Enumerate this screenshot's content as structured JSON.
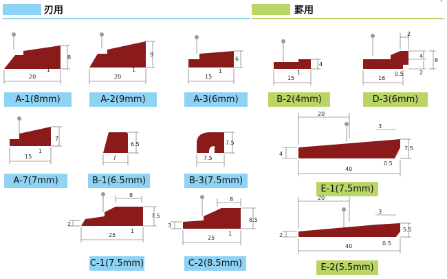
{
  "headers": {
    "blade": {
      "label": "刃用",
      "color": "#8fd3f4"
    },
    "ruled": {
      "label": "罫用",
      "color": "#b8d565"
    },
    "corner": "‹"
  },
  "colors": {
    "profile": "#8b1a1a",
    "blue_label": "#8fd3f4",
    "green_label": "#b8d565"
  },
  "items": {
    "a1": {
      "label": "A-1(8mm)",
      "dims": [
        "20",
        "1",
        "8"
      ]
    },
    "a2": {
      "label": "A-2(9mm)",
      "dims": [
        "20",
        "1",
        "9"
      ]
    },
    "a3": {
      "label": "A-3(6mm)",
      "dims": [
        "15",
        "1",
        "6"
      ]
    },
    "b2": {
      "label": "B-2(4mm)",
      "dims": [
        "15",
        "1",
        "4"
      ]
    },
    "d3": {
      "label": "D-3(6mm)",
      "dims": [
        "16",
        "0.5",
        "2",
        "4",
        "2",
        "6"
      ]
    },
    "a7": {
      "label": "A-7(7mm)",
      "dims": [
        "15",
        "1",
        "7"
      ]
    },
    "b1": {
      "label": "B-1(6.5mm)",
      "dims": [
        "7",
        "6.5"
      ]
    },
    "b3": {
      "label": "B-3(7.5mm)",
      "dims": [
        "7.5",
        "7.5"
      ]
    },
    "e1": {
      "label": "E-1(7.5mm)",
      "dims": [
        "20",
        "3",
        "4",
        "7.5",
        "40",
        "0.5"
      ]
    },
    "c1": {
      "label": "C-1(7.5mm)",
      "dims": [
        "8",
        "2",
        "7.5",
        "25",
        "1"
      ]
    },
    "c2": {
      "label": "C-2(8.5mm)",
      "dims": [
        "8",
        "3",
        "8.5",
        "25",
        "1"
      ]
    },
    "e2": {
      "label": "E-2(5.5mm)",
      "dims": [
        "20",
        "3",
        "2",
        "5.5",
        "40",
        "0.5"
      ]
    }
  }
}
